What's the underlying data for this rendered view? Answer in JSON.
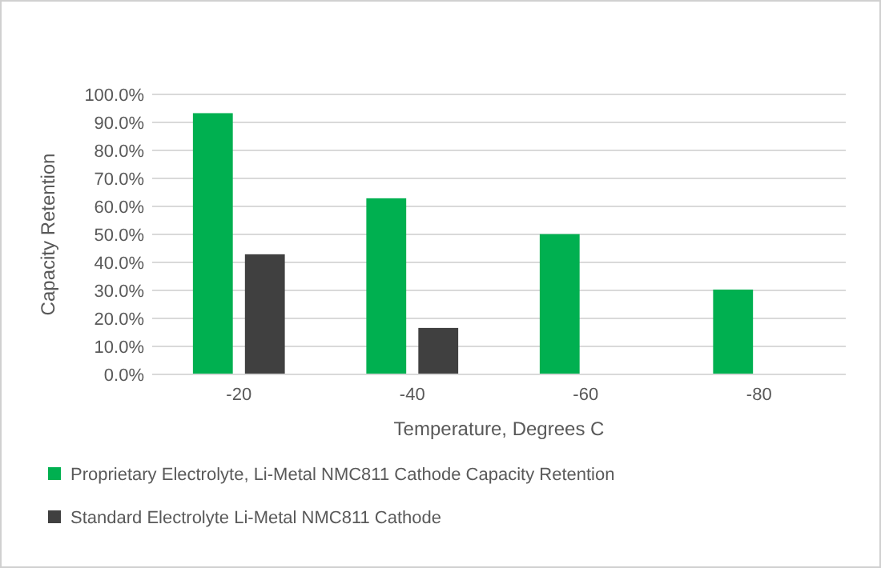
{
  "chart_data": {
    "type": "bar",
    "xlabel": "Temperature, Degrees C",
    "ylabel": "Capacity Retention",
    "categories": [
      "-20",
      "-40",
      "-60",
      "-80"
    ],
    "series": [
      {
        "name": "Proprietary Electrolyte, Li-Metal NMC811 Cathode Capacity Retention",
        "color": "#00b050",
        "values": [
          93.3,
          62.9,
          50.1,
          30.3
        ]
      },
      {
        "name": "Standard Electrolyte Li-Metal NMC811 Cathode",
        "color": "#404040",
        "values": [
          42.9,
          16.6,
          null,
          null
        ]
      }
    ],
    "ylim": [
      0,
      100
    ],
    "yticks": [
      {
        "value": 0,
        "label": "0.0%"
      },
      {
        "value": 10,
        "label": "10.0%"
      },
      {
        "value": 20,
        "label": "20.0%"
      },
      {
        "value": 30,
        "label": "30.0%"
      },
      {
        "value": 40,
        "label": "40.0%"
      },
      {
        "value": 50,
        "label": "50.0%"
      },
      {
        "value": 60,
        "label": "60.0%"
      },
      {
        "value": 70,
        "label": "70.0%"
      },
      {
        "value": 80,
        "label": "80.0%"
      },
      {
        "value": 90,
        "label": "90.0%"
      },
      {
        "value": 100,
        "label": "100.0%"
      }
    ],
    "grid": "y",
    "legend": "bottom"
  }
}
